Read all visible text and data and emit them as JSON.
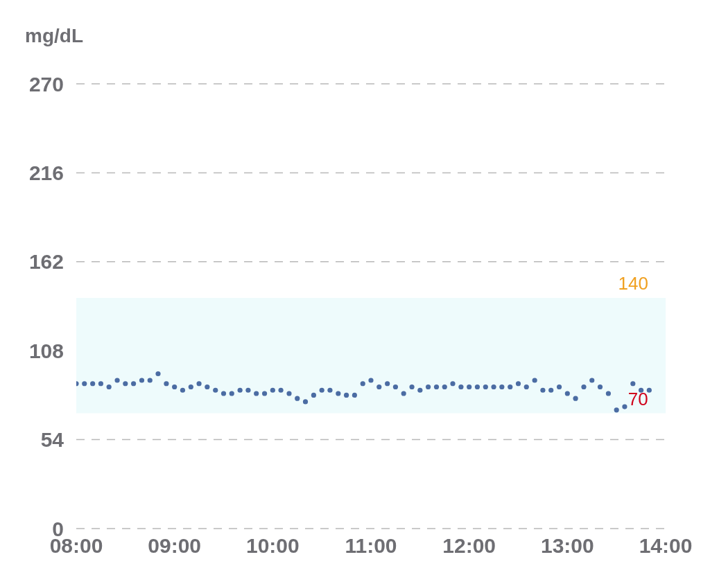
{
  "chart_data": {
    "type": "scatter",
    "ylabel": "mg/dL",
    "x": [
      8,
      8.083,
      8.167,
      8.25,
      8.333,
      8.417,
      8.5,
      8.583,
      8.667,
      8.75,
      8.833,
      8.917,
      9,
      9.083,
      9.167,
      9.25,
      9.333,
      9.417,
      9.5,
      9.583,
      9.667,
      9.75,
      9.833,
      9.917,
      10,
      10.083,
      10.167,
      10.25,
      10.333,
      10.417,
      10.5,
      10.583,
      10.667,
      10.75,
      10.833,
      10.917,
      11,
      11.083,
      11.167,
      11.25,
      11.333,
      11.417,
      11.5,
      11.583,
      11.667,
      11.75,
      11.833,
      11.917,
      12,
      12.083,
      12.167,
      12.25,
      12.333,
      12.417,
      12.5,
      12.583,
      12.667,
      12.75,
      12.833,
      12.917,
      13,
      13.083,
      13.167,
      13.25,
      13.333,
      13.417,
      13.5,
      13.583,
      13.667,
      13.75,
      13.833
    ],
    "series": [
      {
        "color": "#4b6ca3",
        "values": [
          88,
          88,
          88,
          88,
          86,
          90,
          88,
          88,
          90,
          90,
          94,
          88,
          86,
          84,
          86,
          88,
          86,
          84,
          82,
          82,
          84,
          84,
          82,
          82,
          84,
          84,
          82,
          79,
          77,
          81,
          84,
          84,
          82,
          81,
          81,
          88,
          90,
          86,
          88,
          86,
          82,
          86,
          84,
          86,
          86,
          86,
          88,
          86,
          86,
          86,
          86,
          86,
          86,
          86,
          88,
          86,
          90,
          84,
          84,
          86,
          82,
          79,
          86,
          90,
          86,
          82,
          72,
          74,
          88,
          84,
          84
        ]
      }
    ],
    "xlim": [
      8,
      14
    ],
    "xticks": [
      {
        "value": 8,
        "label": "08:00"
      },
      {
        "value": 9,
        "label": "09:00"
      },
      {
        "value": 10,
        "label": "10:00"
      },
      {
        "value": 11,
        "label": "11:00"
      },
      {
        "value": 12,
        "label": "12:00"
      },
      {
        "value": 13,
        "label": "13:00"
      },
      {
        "value": 14,
        "label": "14:00"
      }
    ],
    "ylim": [
      0,
      270
    ],
    "yticks": [
      0,
      54,
      108,
      162,
      216,
      270
    ],
    "bands": [
      {
        "axis": "y",
        "from": 70,
        "to": 140,
        "color": "#eefbfc"
      }
    ],
    "annotations": [
      {
        "text": "140",
        "x": 13.67,
        "y": 140
      },
      {
        "text": "70",
        "x": 13.72,
        "y": 70
      }
    ],
    "grid": "y",
    "marker": "circle",
    "legend": false
  }
}
